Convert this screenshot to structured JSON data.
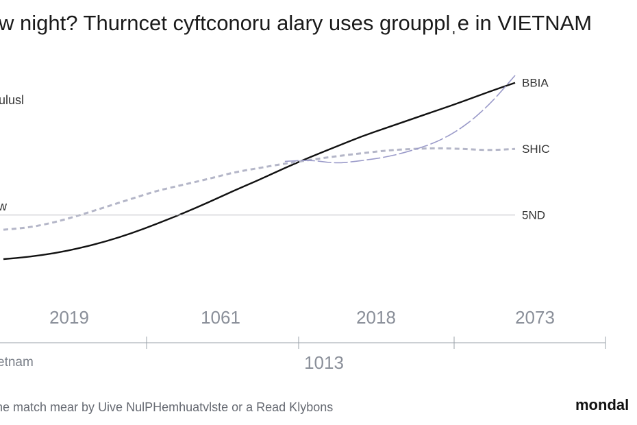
{
  "chart_data": {
    "type": "line",
    "title": "w night? Thurncet cyftconoru alary uses groupplˌe in VIETNAM",
    "ylabel_top": "lulusl",
    "ylabel_mid": "w",
    "x_tick_labels": [
      "2019",
      "1061",
      "2018",
      "2073"
    ],
    "x_axis_center_label": "1013",
    "xlabel": "etnam",
    "caption": "ne match mear by Uive NulPHemhuatvlste or a Read Klybons",
    "brand": "mondal",
    "series": [
      {
        "name": "BBIA",
        "style": "solid",
        "color": "#111111",
        "x": [
          0,
          0.05,
          0.1,
          0.15,
          0.2,
          0.25,
          0.3,
          0.35,
          0.4,
          0.45,
          0.5,
          0.55,
          0.6,
          0.65,
          0.7,
          0.75,
          0.8,
          0.85,
          0.9,
          0.95,
          1.0
        ],
        "values": [
          0,
          3,
          8,
          15,
          24,
          35,
          48,
          62,
          77,
          93,
          108,
          124,
          139,
          153,
          167,
          179,
          191,
          203,
          215,
          228,
          240
        ]
      },
      {
        "name": "SHIC",
        "style": "dashed",
        "color": "#b4b6c8",
        "x": [
          0,
          0.05,
          0.1,
          0.15,
          0.2,
          0.25,
          0.3,
          0.35,
          0.4,
          0.45,
          0.5,
          0.55,
          0.6,
          0.65,
          0.7,
          0.75,
          0.8,
          0.85,
          0.9,
          0.95,
          1.0
        ],
        "values": [
          40,
          43,
          50,
          60,
          71,
          82,
          93,
          101,
          109,
          118,
          124,
          130,
          135,
          140,
          144,
          148,
          150,
          151,
          150,
          148,
          150
        ]
      },
      {
        "name": "",
        "style": "solid-dashed",
        "color": "#9a9ac9",
        "x": [
          0.55,
          0.6,
          0.65,
          0.7,
          0.75,
          0.8,
          0.85,
          0.9,
          0.95,
          1.0
        ],
        "values": [
          133,
          135,
          130,
          134,
          139,
          148,
          160,
          180,
          210,
          250
        ]
      },
      {
        "name": "5ND",
        "style": "reference",
        "color": "#c4c6cc",
        "x": [
          0,
          1.0
        ],
        "values": [
          60,
          60
        ]
      }
    ],
    "grid": false,
    "legend": "right-end labels"
  }
}
